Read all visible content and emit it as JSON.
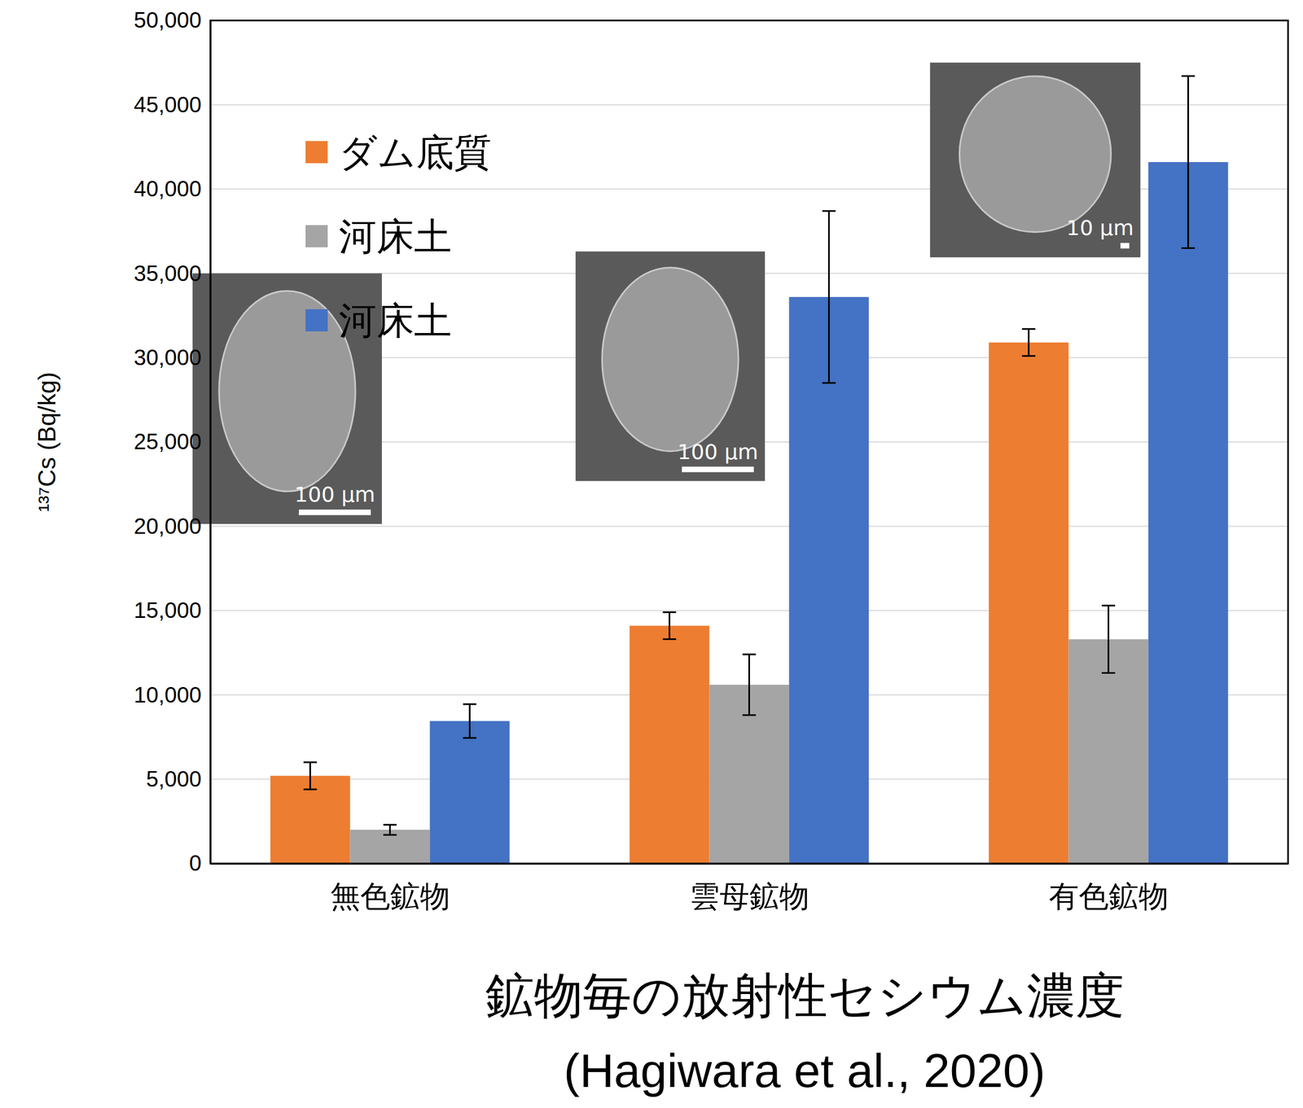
{
  "chart_data": {
    "type": "bar",
    "title": "鉱物毎の放射性セシウム濃度",
    "subtitle": "(Hagiwara et al., 2020)",
    "y_label": "¹³⁷Cs (Bq/kg)",
    "categories": [
      "無色鉱物",
      "雲母鉱物",
      "有色鉱物"
    ],
    "annotations": [
      "100 μm",
      "100 μm",
      "10 μm"
    ],
    "series": [
      {
        "name": "ダム底質",
        "color": "#ed7d31",
        "values": [
          5200,
          14100,
          30900
        ],
        "errors": [
          800,
          800,
          800
        ]
      },
      {
        "name": "河床土",
        "color": "#a5a5a5",
        "values": [
          2000,
          10600,
          13300
        ],
        "errors": [
          300,
          1800,
          2000
        ]
      },
      {
        "name": "河床土",
        "color": "#4472c4",
        "values": [
          8450,
          33600,
          41600
        ],
        "errors": [
          1000,
          5100,
          5100
        ]
      }
    ],
    "ylim": [
      0,
      50000
    ],
    "yticks": [
      0,
      {
        "value": 5000,
        "label": "5,000"
      },
      {
        "value": 10000,
        "label": "10,000"
      },
      {
        "value": 15000,
        "label": "15,000"
      },
      {
        "value": 20000,
        "label": "20,000"
      },
      {
        "value": 25000,
        "label": "25,000"
      },
      {
        "value": 30000,
        "label": "30,000"
      },
      {
        "value": 35000,
        "label": "35,000"
      },
      {
        "value": 40000,
        "label": "40,000"
      },
      {
        "value": 45000,
        "label": "45,000"
      },
      {
        "value": 50000,
        "label": "50,000"
      }
    ],
    "grid": true,
    "legend": "upper left"
  }
}
